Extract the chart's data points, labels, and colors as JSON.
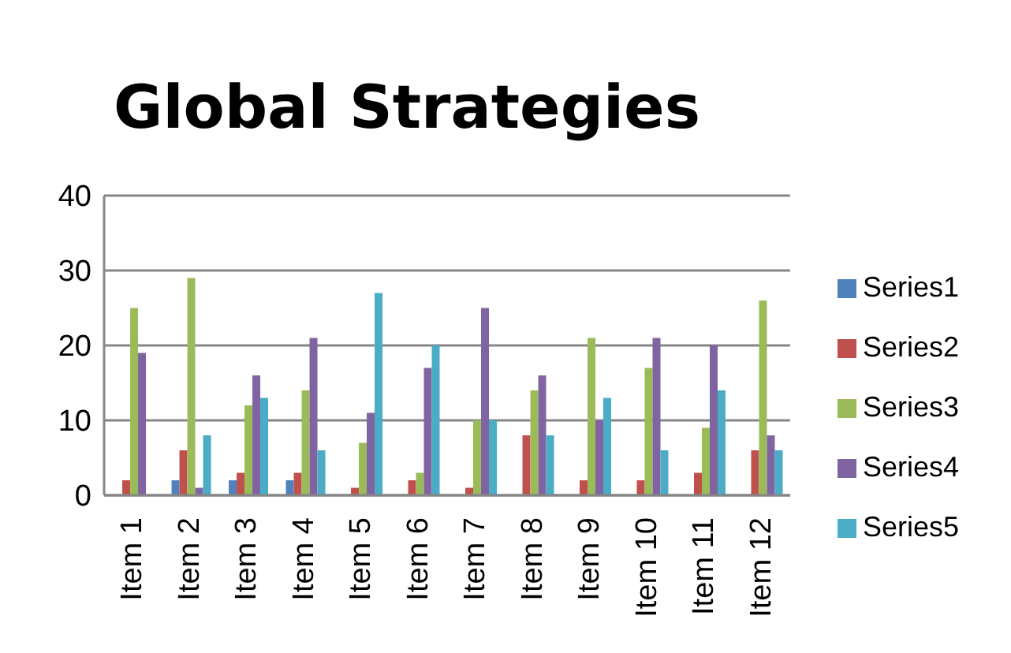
{
  "chart_data": {
    "type": "bar",
    "title": "Global Strategies",
    "categories": [
      "Item 1",
      "Item 2",
      "Item 3",
      "Item 4",
      "Item 5",
      "Item 6",
      "Item 7",
      "Item 8",
      "Item 9",
      "Item 10",
      "Item 11",
      "Item 12"
    ],
    "series": [
      {
        "name": "Series1",
        "color": "#4f81bd",
        "values": [
          0,
          2,
          2,
          2,
          0,
          0,
          0,
          0,
          0,
          0,
          0,
          0
        ]
      },
      {
        "name": "Series2",
        "color": "#c0504d",
        "values": [
          2,
          6,
          3,
          3,
          1,
          2,
          1,
          8,
          2,
          2,
          3,
          6
        ]
      },
      {
        "name": "Series3",
        "color": "#9bbb59",
        "values": [
          25,
          29,
          12,
          14,
          7,
          3,
          10,
          14,
          21,
          17,
          9,
          26
        ]
      },
      {
        "name": "Series4",
        "color": "#8064a2",
        "values": [
          19,
          1,
          16,
          21,
          11,
          17,
          25,
          16,
          10,
          21,
          20,
          8
        ]
      },
      {
        "name": "Series5",
        "color": "#4bacc6",
        "values": [
          0,
          8,
          13,
          6,
          27,
          20,
          10,
          8,
          13,
          6,
          14,
          6
        ]
      }
    ],
    "ylim": [
      0,
      40
    ],
    "yticks": [
      0,
      10,
      20,
      30,
      40
    ],
    "grid": "y",
    "legend": "right"
  }
}
